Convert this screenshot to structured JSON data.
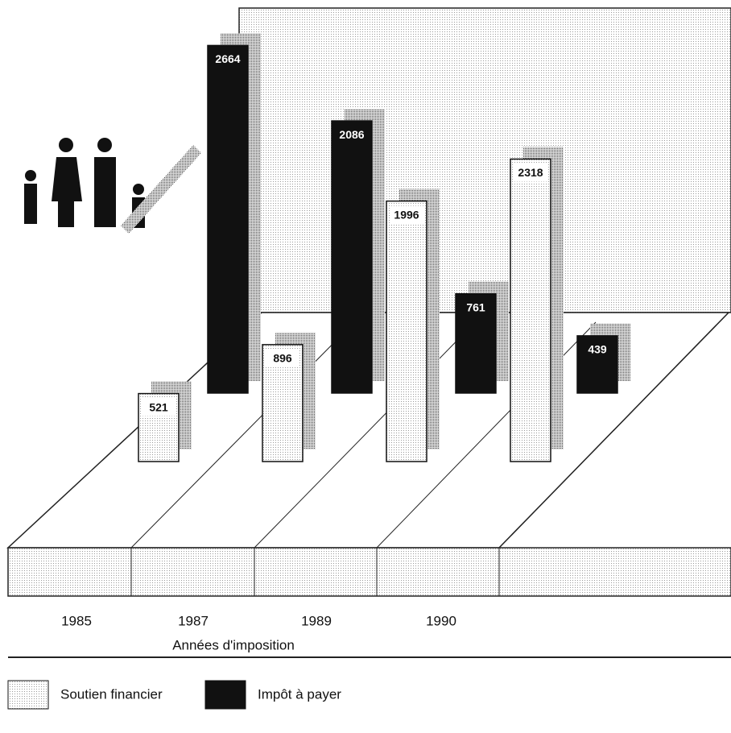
{
  "chart_data": {
    "type": "bar3d",
    "categories": [
      "1985",
      "1987",
      "1989",
      "1990"
    ],
    "x_label": "Années d'imposition",
    "series": [
      {
        "name": "Soutien financier",
        "color": "#f4f4f4",
        "values": [
          521,
          896,
          1996,
          2318
        ]
      },
      {
        "name": "Impôt à payer",
        "color": "#111111",
        "values": [
          2664,
          2086,
          761,
          439
        ]
      }
    ]
  }
}
